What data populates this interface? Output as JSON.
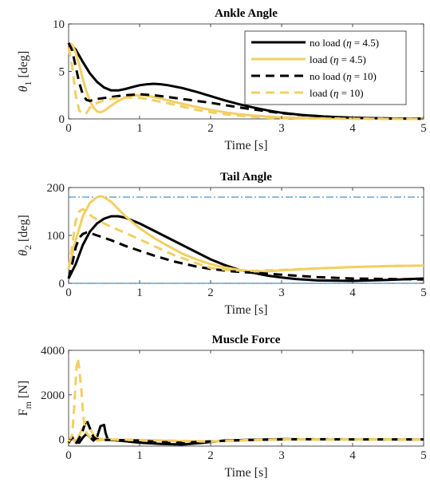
{
  "chart_data": [
    {
      "type": "line",
      "title": "Ankle Angle",
      "xlabel": "Time [s]",
      "ylabel": "θ1 [deg]",
      "ylabel_main": "θ",
      "ylabel_sub": "1",
      "ylabel_tail": " [deg]",
      "xlim": [
        0,
        5
      ],
      "ylim": [
        0,
        10
      ],
      "xticks": [
        "0",
        "1",
        "2",
        "3",
        "4",
        "5"
      ],
      "yticks": [
        "0",
        "5",
        "10"
      ],
      "ytick_values": [
        0,
        5,
        10
      ],
      "grid": false,
      "legend_position": "top-right",
      "series": [
        {
          "name": "no load (η = 4.5)",
          "legend_pre": "no load (",
          "legend_eta": "η",
          "legend_post": " = 4.5)",
          "color": "#000000",
          "dashed": false,
          "x": [
            0,
            0.1,
            0.2,
            0.3,
            0.4,
            0.5,
            0.6,
            0.7,
            0.8,
            0.9,
            1.0,
            1.1,
            1.2,
            1.3,
            1.4,
            1.6,
            1.8,
            2.0,
            2.2,
            2.4,
            2.6,
            2.8,
            3.0,
            3.3,
            3.6,
            4.0,
            4.5,
            5.0
          ],
          "y": [
            8.0,
            7.3,
            6.0,
            4.8,
            3.9,
            3.3,
            3.0,
            3.0,
            3.15,
            3.35,
            3.55,
            3.65,
            3.7,
            3.65,
            3.55,
            3.25,
            2.85,
            2.4,
            1.95,
            1.55,
            1.2,
            0.9,
            0.65,
            0.4,
            0.25,
            0.12,
            0.05,
            0.02
          ]
        },
        {
          "name": "load (η = 4.5)",
          "legend_pre": "load (",
          "legend_eta": "η",
          "legend_post": " = 4.5)",
          "color": "#f2cf63",
          "dashed": false,
          "x": [
            0,
            0.05,
            0.1,
            0.15,
            0.2,
            0.25,
            0.3,
            0.35,
            0.4,
            0.45,
            0.5,
            0.6,
            0.7,
            0.8,
            0.9,
            1.0,
            1.1,
            1.2,
            1.3,
            1.4,
            1.6,
            1.8,
            2.0,
            2.2,
            2.4,
            2.6,
            2.8,
            3.0,
            3.5,
            4.0,
            5.0
          ],
          "y": [
            8.0,
            7.8,
            7.0,
            5.7,
            4.2,
            2.9,
            1.9,
            1.2,
            0.8,
            0.7,
            0.85,
            1.4,
            1.9,
            2.25,
            2.45,
            2.5,
            2.45,
            2.3,
            2.15,
            1.95,
            1.6,
            1.25,
            0.95,
            0.7,
            0.5,
            0.35,
            0.25,
            0.15,
            0.07,
            0.03,
            0.01
          ]
        },
        {
          "name": "no load (η = 10)",
          "legend_pre": "no load (",
          "legend_eta": "η",
          "legend_post": " = 10)",
          "color": "#000000",
          "dashed": true,
          "x": [
            0,
            0.05,
            0.1,
            0.15,
            0.2,
            0.25,
            0.3,
            0.35,
            0.4,
            0.5,
            0.6,
            0.7,
            0.8,
            0.9,
            1.0,
            1.1,
            1.2,
            1.4,
            1.6,
            1.8,
            2.0,
            2.2,
            2.5,
            2.8,
            3.0,
            3.3,
            3.6,
            4.0,
            4.5,
            5.0
          ],
          "y": [
            8.0,
            7.2,
            5.5,
            3.8,
            2.6,
            2.0,
            1.9,
            2.0,
            2.1,
            2.2,
            2.3,
            2.4,
            2.5,
            2.55,
            2.6,
            2.55,
            2.5,
            2.3,
            2.1,
            1.9,
            1.7,
            1.45,
            1.1,
            0.8,
            0.6,
            0.4,
            0.25,
            0.12,
            0.05,
            0.02
          ]
        },
        {
          "name": "load (η = 10)",
          "legend_pre": "load (",
          "legend_eta": "η",
          "legend_post": " = 10)",
          "color": "#f2cf63",
          "dashed": true,
          "x": [
            0,
            0.05,
            0.1,
            0.15,
            0.2,
            0.25,
            0.3,
            0.4,
            0.5,
            0.6,
            0.7,
            0.8,
            0.9,
            1.0,
            1.1,
            1.2,
            1.4,
            1.6,
            1.8,
            2.0,
            2.2,
            2.4,
            2.6,
            2.8,
            3.0,
            3.5,
            4.0,
            5.0
          ],
          "y": [
            7.5,
            5.5,
            2.5,
            0.9,
            0.5,
            0.6,
            1.2,
            1.7,
            1.95,
            2.1,
            2.2,
            2.25,
            2.25,
            2.2,
            2.1,
            1.95,
            1.65,
            1.3,
            0.95,
            0.7,
            0.5,
            0.35,
            0.22,
            0.12,
            0.07,
            0.03,
            0.01,
            0.0
          ]
        }
      ]
    },
    {
      "type": "line",
      "title": "Tail Angle",
      "xlabel": "Time [s]",
      "ylabel": "θ2 [deg]",
      "ylabel_main": "θ",
      "ylabel_sub": "2",
      "ylabel_tail": " [deg]",
      "xlim": [
        0,
        5
      ],
      "ylim": [
        0,
        200
      ],
      "xticks": [
        "0",
        "1",
        "2",
        "3",
        "4",
        "5"
      ],
      "yticks": [
        "0",
        "100",
        "200"
      ],
      "ytick_values": [
        0,
        100,
        200
      ],
      "grid": false,
      "reference_lines": [
        {
          "y": 180,
          "color": "#1f77b4",
          "style": "dash-dot"
        },
        {
          "y": 0,
          "color": "#1f77b4",
          "style": "dash-dot"
        }
      ],
      "series": [
        {
          "name": "no load (η = 4.5)",
          "color": "#000000",
          "dashed": false,
          "x": [
            0,
            0.1,
            0.2,
            0.3,
            0.4,
            0.5,
            0.6,
            0.7,
            0.8,
            1.0,
            1.2,
            1.4,
            1.6,
            1.8,
            2.0,
            2.2,
            2.4,
            2.6,
            2.8,
            3.0,
            3.2,
            3.5,
            4.0,
            4.5,
            5.0
          ],
          "y": [
            10,
            40,
            80,
            108,
            125,
            135,
            140,
            140,
            137,
            125,
            110,
            95,
            80,
            65,
            50,
            38,
            28,
            22,
            16,
            12,
            9,
            6,
            5,
            7,
            10
          ]
        },
        {
          "name": "load (η = 4.5)",
          "color": "#f2cf63",
          "dashed": false,
          "x": [
            0,
            0.1,
            0.2,
            0.3,
            0.4,
            0.45,
            0.5,
            0.6,
            0.7,
            0.8,
            1.0,
            1.2,
            1.4,
            1.6,
            1.8,
            2.0,
            2.2,
            2.4,
            2.6,
            2.8,
            3.0,
            3.5,
            4.0,
            4.5,
            5.0
          ],
          "y": [
            30,
            90,
            140,
            168,
            180,
            182,
            180,
            170,
            155,
            140,
            115,
            95,
            78,
            62,
            50,
            40,
            33,
            28,
            25,
            25,
            27,
            31,
            34,
            36,
            37
          ]
        },
        {
          "name": "no load (η = 10)",
          "color": "#000000",
          "dashed": true,
          "x": [
            0,
            0.05,
            0.1,
            0.15,
            0.2,
            0.25,
            0.3,
            0.4,
            0.6,
            0.8,
            1.0,
            1.2,
            1.5,
            1.8,
            2.0,
            2.3,
            2.6,
            3.0,
            3.5,
            4.0,
            5.0
          ],
          "y": [
            10,
            40,
            75,
            95,
            103,
            106,
            105,
            100,
            90,
            78,
            68,
            58,
            45,
            35,
            30,
            25,
            22,
            18,
            13,
            10,
            8
          ]
        },
        {
          "name": "load (η = 10)",
          "color": "#f2cf63",
          "dashed": true,
          "x": [
            0,
            0.05,
            0.1,
            0.15,
            0.2,
            0.25,
            0.3,
            0.4,
            0.5,
            0.6,
            0.8,
            1.0,
            1.2,
            1.5,
            1.8,
            2.0,
            2.3,
            2.6,
            3.0,
            3.5,
            4.0,
            4.5,
            5.0
          ],
          "y": [
            30,
            80,
            130,
            150,
            155,
            150,
            143,
            133,
            125,
            118,
            105,
            92,
            78,
            58,
            42,
            32,
            27,
            26,
            28,
            31,
            34,
            36,
            37
          ]
        }
      ]
    },
    {
      "type": "line",
      "title": "Muscle Force",
      "xlabel": "Time [s]",
      "ylabel": "Fm [N]",
      "ylabel_main": "F",
      "ylabel_sub": "m",
      "ylabel_tail": " [N]",
      "xlim": [
        0,
        5
      ],
      "ylim": [
        -300,
        4000
      ],
      "xticks": [
        "0",
        "1",
        "2",
        "3",
        "4",
        "5"
      ],
      "yticks": [
        "0",
        "2000",
        "4000"
      ],
      "ytick_values": [
        0,
        2000,
        4000
      ],
      "grid": false,
      "series": [
        {
          "name": "no load (η = 4.5)",
          "color": "#000000",
          "dashed": false,
          "x": [
            0,
            0.05,
            0.1,
            0.15,
            0.2,
            0.25,
            0.3,
            0.35,
            0.4,
            0.45,
            0.5,
            0.52,
            0.55,
            0.6,
            0.8,
            1.0,
            1.3,
            1.6,
            1.9,
            2.2,
            2.5,
            3.0,
            3.5,
            4.0,
            5.0
          ],
          "y": [
            -120,
            50,
            -100,
            -150,
            80,
            250,
            100,
            -50,
            100,
            600,
            650,
            300,
            0,
            -20,
            -80,
            -150,
            -200,
            -230,
            -150,
            -50,
            -20,
            10,
            0,
            5,
            0
          ]
        },
        {
          "name": "load (η = 4.5)",
          "color": "#f2cf63",
          "dashed": false,
          "x": [
            0,
            0.05,
            0.1,
            0.15,
            0.2,
            0.25,
            0.3,
            0.35,
            0.4,
            0.5,
            0.7,
            1.0,
            1.3,
            1.6,
            2.0,
            2.5,
            3.0,
            3.5,
            4.0,
            5.0
          ],
          "y": [
            -200,
            100,
            -150,
            200,
            500,
            800,
            500,
            200,
            50,
            0,
            -20,
            -30,
            -50,
            -80,
            -100,
            -30,
            0,
            0,
            0,
            0
          ]
        },
        {
          "name": "no load (η = 10)",
          "color": "#000000",
          "dashed": true,
          "x": [
            0,
            0.05,
            0.1,
            0.15,
            0.2,
            0.25,
            0.3,
            0.35,
            0.4,
            0.5,
            0.7,
            1.0,
            1.3,
            1.6,
            1.9,
            2.2,
            2.6,
            3.0,
            3.5,
            4.0,
            5.0
          ],
          "y": [
            -150,
            100,
            -200,
            50,
            400,
            900,
            500,
            100,
            0,
            -20,
            -30,
            -50,
            -120,
            -150,
            -100,
            -60,
            -20,
            0,
            10,
            0,
            0
          ]
        },
        {
          "name": "load (η = 10)",
          "color": "#f2cf63",
          "dashed": true,
          "x": [
            0,
            0.05,
            0.08,
            0.11,
            0.13,
            0.15,
            0.18,
            0.2,
            0.22,
            0.25,
            0.3,
            0.35,
            0.4,
            0.5,
            0.7,
            1.0,
            1.5,
            2.0,
            2.5,
            3.0,
            4.0,
            5.0
          ],
          "y": [
            -100,
            200,
            1500,
            3200,
            3650,
            3200,
            2200,
            1300,
            700,
            300,
            100,
            0,
            -50,
            -20,
            0,
            -30,
            -60,
            -90,
            -40,
            0,
            0,
            0
          ]
        }
      ]
    }
  ]
}
